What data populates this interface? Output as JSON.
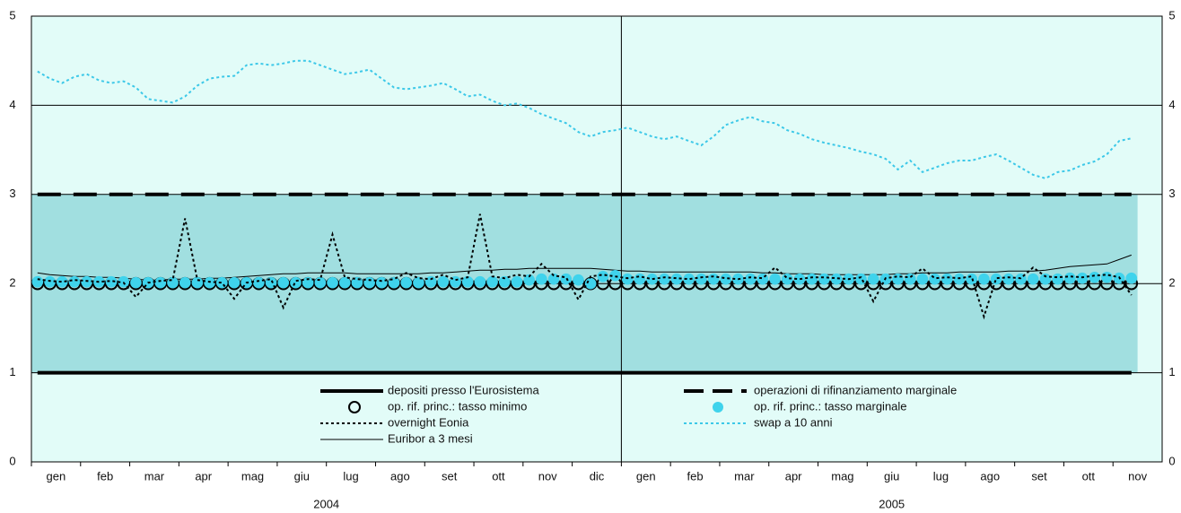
{
  "chart_data": {
    "type": "line",
    "categories": [
      null,
      "gen",
      null,
      null,
      null,
      "feb",
      null,
      null,
      null,
      "mar",
      null,
      null,
      null,
      "apr",
      null,
      null,
      null,
      "mag",
      null,
      null,
      null,
      "giu",
      null,
      null,
      null,
      "lug",
      null,
      null,
      null,
      "ago",
      null,
      null,
      null,
      "set",
      null,
      null,
      null,
      "ott",
      null,
      null,
      null,
      "nov",
      null,
      null,
      null,
      "dic",
      null,
      null,
      null,
      "gen",
      null,
      null,
      null,
      "feb",
      null,
      null,
      null,
      "mar",
      null,
      null,
      null,
      "apr",
      null,
      null,
      null,
      "mag",
      null,
      null,
      null,
      "giu",
      null,
      null,
      null,
      "lug",
      null,
      null,
      null,
      "ago",
      null,
      null,
      null,
      "set",
      null,
      null,
      null,
      "ott",
      null,
      null,
      null,
      "nov",
      null,
      null
    ],
    "years": [
      "2004",
      "2005"
    ],
    "ylim": [
      0,
      5
    ],
    "yticks": [
      0,
      1,
      2,
      3,
      4,
      5
    ],
    "grid": true,
    "series": [
      {
        "name": "depositi presso l'Eurosistema",
        "color": "#000000",
        "style": "solid",
        "width": 4,
        "values": [
          1,
          1,
          1,
          1,
          1,
          1,
          1,
          1,
          1,
          1,
          1,
          1,
          1,
          1,
          1,
          1,
          1,
          1,
          1,
          1,
          1,
          1,
          1,
          1,
          1,
          1,
          1,
          1,
          1,
          1,
          1,
          1,
          1,
          1,
          1,
          1,
          1,
          1,
          1,
          1,
          1,
          1,
          1,
          1,
          1,
          1,
          1,
          1,
          1,
          1,
          1,
          1,
          1,
          1,
          1,
          1,
          1,
          1,
          1,
          1,
          1,
          1,
          1,
          1,
          1,
          1,
          1,
          1,
          1,
          1,
          1,
          1,
          1,
          1,
          1,
          1,
          1,
          1,
          1,
          1,
          1,
          1,
          1,
          1,
          1,
          1,
          1,
          1,
          1,
          1,
          null,
          null
        ]
      },
      {
        "name": "operazioni di rifinanziamento marginale",
        "color": "#000000",
        "style": "dashed",
        "width": 4,
        "values": [
          3,
          3,
          3,
          3,
          3,
          3,
          3,
          3,
          3,
          3,
          3,
          3,
          3,
          3,
          3,
          3,
          3,
          3,
          3,
          3,
          3,
          3,
          3,
          3,
          3,
          3,
          3,
          3,
          3,
          3,
          3,
          3,
          3,
          3,
          3,
          3,
          3,
          3,
          3,
          3,
          3,
          3,
          3,
          3,
          3,
          3,
          3,
          3,
          3,
          3,
          3,
          3,
          3,
          3,
          3,
          3,
          3,
          3,
          3,
          3,
          3,
          3,
          3,
          3,
          3,
          3,
          3,
          3,
          3,
          3,
          3,
          3,
          3,
          3,
          3,
          3,
          3,
          3,
          3,
          3,
          3,
          3,
          3,
          3,
          3,
          3,
          3,
          3,
          3,
          3,
          null,
          null
        ]
      },
      {
        "name": "op. rif. princ.: tasso minimo",
        "color": "#000000",
        "style": "circle-open",
        "width": 2,
        "values": [
          2,
          2,
          2,
          2,
          2,
          2,
          2,
          2,
          2,
          2,
          2,
          2,
          2,
          2,
          2,
          2,
          2,
          2,
          2,
          2,
          2,
          2,
          2,
          2,
          2,
          2,
          2,
          2,
          2,
          2,
          2,
          2,
          2,
          2,
          2,
          2,
          2,
          2,
          2,
          2,
          2,
          2,
          2,
          2,
          2,
          2,
          2,
          2,
          2,
          2,
          2,
          2,
          2,
          2,
          2,
          2,
          2,
          2,
          2,
          2,
          2,
          2,
          2,
          2,
          2,
          2,
          2,
          2,
          2,
          2,
          2,
          2,
          2,
          2,
          2,
          2,
          2,
          2,
          2,
          2,
          2,
          2,
          2,
          2,
          2,
          2,
          2,
          2,
          2,
          2,
          null,
          null
        ]
      },
      {
        "name": "op. rif. princ.: tasso marginale",
        "color": "#3fd3ec",
        "style": "circle-filled",
        "width": 0,
        "values": [
          2.02,
          2.02,
          2.02,
          2.02,
          2.02,
          2.02,
          2.02,
          2.02,
          2.01,
          2.01,
          2.01,
          2.01,
          2.01,
          2.01,
          2.01,
          2.01,
          2.01,
          2.01,
          2.01,
          2.01,
          2.01,
          2.01,
          2.01,
          2.01,
          2.01,
          2.01,
          2.01,
          2.01,
          2.01,
          2.01,
          2.01,
          2.01,
          2.02,
          2.02,
          2.02,
          2.02,
          2.02,
          2.02,
          2.02,
          2.02,
          2.04,
          2.05,
          2.05,
          2.05,
          2.04,
          2.0,
          2.08,
          2.09,
          2.05,
          2.05,
          2.05,
          2.05,
          2.05,
          2.05,
          2.05,
          2.05,
          2.05,
          2.05,
          2.05,
          2.05,
          2.05,
          2.05,
          2.05,
          2.05,
          2.05,
          2.05,
          2.05,
          2.05,
          2.05,
          2.05,
          2.05,
          2.05,
          2.05,
          2.05,
          2.05,
          2.05,
          2.05,
          2.05,
          2.05,
          2.05,
          2.05,
          2.05,
          2.05,
          2.05,
          2.06,
          2.06,
          2.07,
          2.07,
          2.06,
          2.06,
          null,
          null
        ]
      },
      {
        "name": "overnight Eonia",
        "color": "#000000",
        "style": "dotted",
        "width": 2,
        "values": [
          2.05,
          2.03,
          2.02,
          2.04,
          2.03,
          2.02,
          2.03,
          2.01,
          1.85,
          2.01,
          2.03,
          2.04,
          2.73,
          2.04,
          2.02,
          2.01,
          1.83,
          2.01,
          2.03,
          2.05,
          1.73,
          2.03,
          2.05,
          2.04,
          2.55,
          2.07,
          2.05,
          2.04,
          2.03,
          2.05,
          2.12,
          2.06,
          2.05,
          2.1,
          2.04,
          2.07,
          2.78,
          2.08,
          2.06,
          2.1,
          2.08,
          2.22,
          2.09,
          2.07,
          1.82,
          2.08,
          2.1,
          2.08,
          2.06,
          2.08,
          2.05,
          2.07,
          2.06,
          2.05,
          2.07,
          2.08,
          2.06,
          2.05,
          2.07,
          2.06,
          2.18,
          2.06,
          2.05,
          2.07,
          2.07,
          2.06,
          2.05,
          2.07,
          1.8,
          2.06,
          2.08,
          2.07,
          2.17,
          2.06,
          2.07,
          2.06,
          2.08,
          1.63,
          2.06,
          2.07,
          2.06,
          2.18,
          2.08,
          2.07,
          2.08,
          2.07,
          2.09,
          2.1,
          2.07,
          1.87,
          null,
          null
        ]
      },
      {
        "name": "swap a 10 anni",
        "color": "#3cc8e8",
        "style": "dotted",
        "width": 2,
        "values": [
          4.38,
          4.3,
          4.25,
          4.32,
          4.35,
          4.28,
          4.25,
          4.27,
          4.2,
          4.07,
          4.05,
          4.03,
          4.1,
          4.22,
          4.3,
          4.32,
          4.33,
          4.45,
          4.47,
          4.45,
          4.47,
          4.5,
          4.5,
          4.45,
          4.4,
          4.35,
          4.37,
          4.4,
          4.3,
          4.2,
          4.18,
          4.2,
          4.22,
          4.25,
          4.18,
          4.1,
          4.12,
          4.05,
          4.0,
          4.02,
          3.97,
          3.9,
          3.85,
          3.8,
          3.7,
          3.65,
          3.7,
          3.72,
          3.75,
          3.7,
          3.65,
          3.62,
          3.65,
          3.6,
          3.55,
          3.65,
          3.78,
          3.83,
          3.87,
          3.82,
          3.8,
          3.72,
          3.68,
          3.62,
          3.58,
          3.55,
          3.52,
          3.48,
          3.45,
          3.4,
          3.28,
          3.38,
          3.25,
          3.3,
          3.35,
          3.38,
          3.38,
          3.42,
          3.45,
          3.38,
          3.3,
          3.22,
          3.18,
          3.25,
          3.27,
          3.33,
          3.37,
          3.45,
          3.6,
          3.63,
          null,
          null
        ]
      },
      {
        "name": "Euribor a 3 mesi",
        "color": "#000000",
        "style": "solid",
        "width": 1,
        "values": [
          2.12,
          2.1,
          2.09,
          2.08,
          2.08,
          2.07,
          2.07,
          2.06,
          2.05,
          2.04,
          2.04,
          2.05,
          2.05,
          2.05,
          2.06,
          2.06,
          2.07,
          2.08,
          2.09,
          2.1,
          2.11,
          2.11,
          2.12,
          2.12,
          2.12,
          2.12,
          2.11,
          2.11,
          2.11,
          2.11,
          2.11,
          2.11,
          2.12,
          2.12,
          2.13,
          2.14,
          2.15,
          2.15,
          2.16,
          2.16,
          2.17,
          2.17,
          2.17,
          2.17,
          2.17,
          2.17,
          2.16,
          2.15,
          2.14,
          2.14,
          2.13,
          2.13,
          2.13,
          2.13,
          2.13,
          2.13,
          2.13,
          2.13,
          2.13,
          2.12,
          2.12,
          2.11,
          2.11,
          2.11,
          2.1,
          2.1,
          2.1,
          2.1,
          2.1,
          2.1,
          2.11,
          2.11,
          2.12,
          2.12,
          2.12,
          2.13,
          2.13,
          2.13,
          2.13,
          2.14,
          2.14,
          2.14,
          2.15,
          2.17,
          2.19,
          2.2,
          2.21,
          2.22,
          2.27,
          2.32,
          null,
          null
        ]
      }
    ]
  }
}
